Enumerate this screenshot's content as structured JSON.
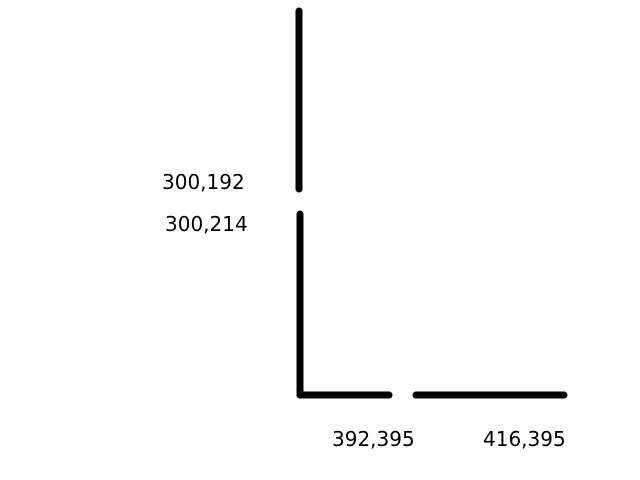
{
  "labels": {
    "a": "300,192",
    "b": "300,214",
    "c": "392,395",
    "d": "416,395"
  },
  "colors": {
    "stroke": "#000000",
    "background": "#ffffff"
  }
}
